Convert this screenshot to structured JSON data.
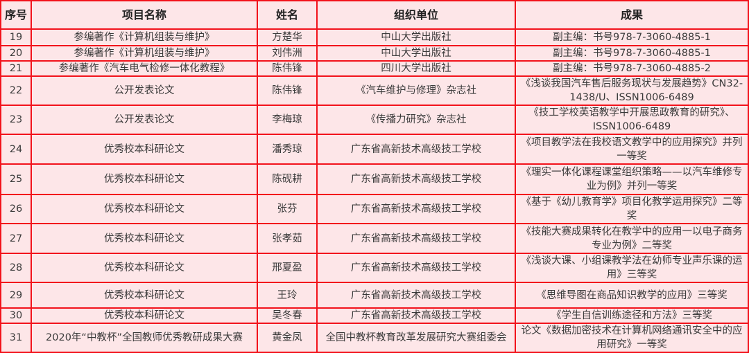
{
  "table": {
    "headers": [
      "序号",
      "项目名称",
      "姓名",
      "组织单位",
      "成果"
    ],
    "rows": [
      [
        "19",
        "参编著作《计算机组装与维护》",
        "方楚华",
        "中山大学出版社",
        "副主编：书号978-7-3060-4885-1"
      ],
      [
        "20",
        "参编著作《计算机组装与维护》",
        "刘伟洲",
        "中山大学出版社",
        "副主编：书号978-7-3060-4885-1"
      ],
      [
        "21",
        "参编著作《汽车电气检修一体化教程》",
        "陈伟锋",
        "四川大学出版社",
        "副主编：书号978-7-3060-4885-2"
      ],
      [
        "22",
        "公开发表论文",
        "陈伟锋",
        "《汽车维护与修理》杂志社",
        "《浅谈我国汽车售后服务现状与发展趋势》CN32-1438/U、ISSN1006-6489"
      ],
      [
        "23",
        "公开发表论文",
        "李梅琼",
        "《传播力研究》杂志社",
        "《技工学校英语教学中开展思政教育的研究》、ISSN1006-6489"
      ],
      [
        "24",
        "优秀校本科研论文",
        "潘秀琼",
        "广东省高新技术高级技工学校",
        "《项目教学法在我校语文教学中的应用探究》并列一等奖"
      ],
      [
        "25",
        "优秀校本科研论文",
        "陈砚耕",
        "广东省高新技术高级技工学校",
        "《理实一体化课程课堂组织策略——以汽车维修专业为例》并列一等奖"
      ],
      [
        "26",
        "优秀校本科研论文",
        "张芬",
        "广东省高新技术高级技工学校",
        "《基于《幼儿教育学》项目化教学运用探究》二等奖"
      ],
      [
        "27",
        "优秀校本科研论文",
        "张孝茹",
        "广东省高新技术高级技工学校",
        "《技能大赛成果转化在教学中的应用一以电子商务专业为例》二等奖"
      ],
      [
        "28",
        "优秀校本科研论文",
        "邢夏盈",
        "广东省高新技术高级技工学校",
        "《浅谈大课、小组课教学法在幼师专业声乐课的运用》三等奖"
      ],
      [
        "29",
        "优秀校本科研论文",
        "王玲",
        "广东省高新技术高级技工学校",
        "《思维导图在商品知识教学的应用》三等奖"
      ],
      [
        "30",
        "优秀校本科研论文",
        "吴冬春",
        "广东省高新技术高级技工学校",
        "《学生自信训练途径和方法》三等奖"
      ],
      [
        "31",
        "2020年“中教杯”全国教师优秀教研成果大赛",
        "黄金凤",
        "全国中教杯教育改革发展研究大赛组委会",
        "论文《数据加密技术在计算机网络通讯安全中的应用研究》一等奖"
      ]
    ]
  },
  "colors": {
    "border": "#F2121B",
    "background": "#FDE6E8",
    "text": "#3a3a3a"
  }
}
